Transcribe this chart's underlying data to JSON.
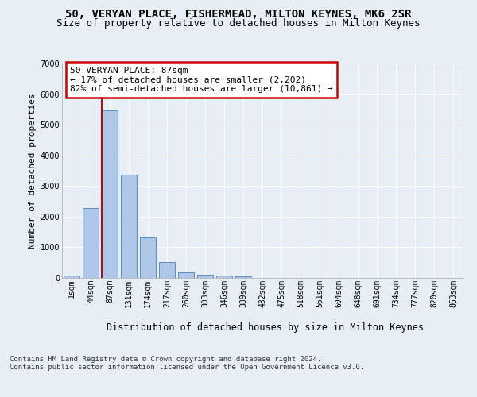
{
  "title1": "50, VERYAN PLACE, FISHERMEAD, MILTON KEYNES, MK6 2SR",
  "title2": "Size of property relative to detached houses in Milton Keynes",
  "xlabel": "Distribution of detached houses by size in Milton Keynes",
  "ylabel": "Number of detached properties",
  "categories": [
    "1sqm",
    "44sqm",
    "87sqm",
    "131sqm",
    "174sqm",
    "217sqm",
    "260sqm",
    "303sqm",
    "346sqm",
    "389sqm",
    "432sqm",
    "475sqm",
    "518sqm",
    "561sqm",
    "604sqm",
    "648sqm",
    "691sqm",
    "734sqm",
    "777sqm",
    "820sqm",
    "863sqm"
  ],
  "values": [
    75,
    2270,
    5480,
    3380,
    1310,
    510,
    185,
    95,
    65,
    55,
    0,
    0,
    0,
    0,
    0,
    0,
    0,
    0,
    0,
    0,
    0
  ],
  "bar_color": "#aec6e8",
  "bar_edge_color": "#5b8db8",
  "vline_color": "#cc0000",
  "vline_index": 2,
  "annotation_text": "50 VERYAN PLACE: 87sqm\n← 17% of detached houses are smaller (2,202)\n82% of semi-detached houses are larger (10,861) →",
  "annotation_box_edge": "#cc0000",
  "ylim": [
    0,
    7000
  ],
  "yticks": [
    0,
    1000,
    2000,
    3000,
    4000,
    5000,
    6000,
    7000
  ],
  "bg_color": "#e8eef5",
  "grid_color": "#ffffff",
  "footer": "Contains HM Land Registry data © Crown copyright and database right 2024.\nContains public sector information licensed under the Open Government Licence v3.0.",
  "title1_fontsize": 10,
  "title2_fontsize": 9,
  "xlabel_fontsize": 8.5,
  "ylabel_fontsize": 8,
  "tick_fontsize": 7,
  "annotation_fontsize": 8,
  "footer_fontsize": 6.5
}
